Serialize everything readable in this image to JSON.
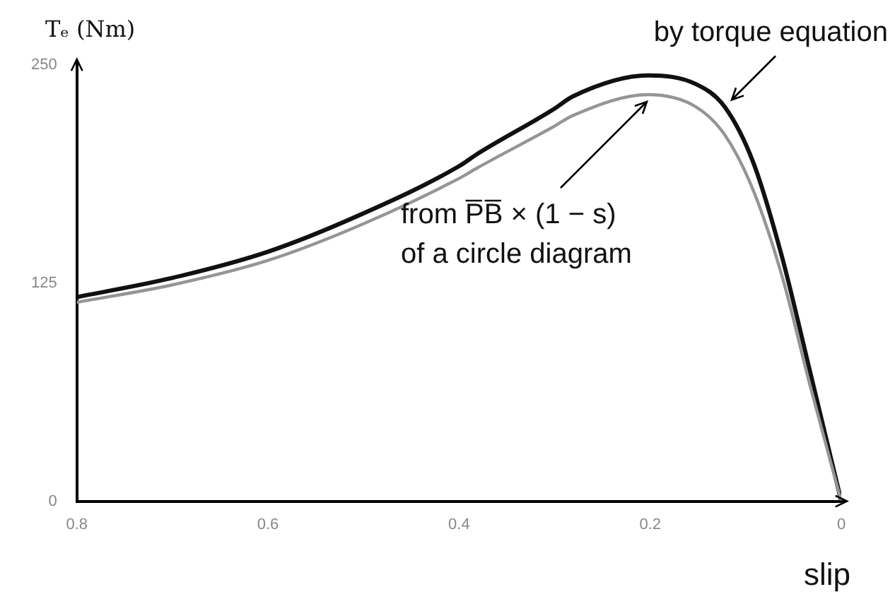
{
  "chart_data": {
    "type": "line",
    "ylabel": "Tₑ (Nm)",
    "xlabel": "slip",
    "x": [
      0.8,
      0.7,
      0.6,
      0.5,
      0.4,
      0.381,
      0.3,
      0.281,
      0.202,
      0.152,
      0.122,
      0.092,
      0.062,
      0.033,
      0
    ],
    "xlim": [
      0.8,
      0
    ],
    "xticks": [
      0.8,
      0.6,
      0.4,
      0.2,
      0
    ],
    "ylim": [
      0,
      250
    ],
    "yticks": [
      0,
      125,
      250
    ],
    "series": [
      {
        "color": "#111111",
        "values": [
          117,
          128,
          143,
          165,
          192,
          199,
          225,
          232,
          244,
          239,
          226,
          194,
          140,
          75,
          0
        ]
      },
      {
        "color": "#959595",
        "values": [
          114,
          124,
          138,
          159,
          185,
          191,
          215,
          221,
          233,
          226,
          210,
          178,
          129,
          67,
          0
        ]
      }
    ],
    "annotations": [
      {
        "text": "by torque equation",
        "x": 0.122,
        "y": 226
      },
      {
        "text": "from P̅B̅ × (1 − s)\nof a circle diagram",
        "x": 0.202,
        "y": 233
      }
    ],
    "grid": false,
    "legend": false,
    "marker": "none",
    "line_style": "solid"
  }
}
